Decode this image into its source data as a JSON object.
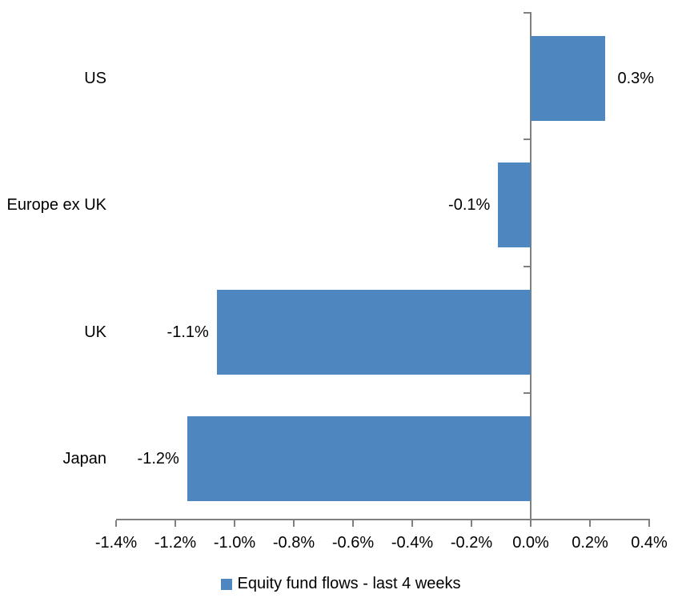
{
  "chart_data": {
    "type": "bar",
    "orientation": "horizontal",
    "categories": [
      "US",
      "Europe ex UK",
      "UK",
      "Japan"
    ],
    "values": [
      0.3,
      -0.1,
      -1.1,
      -1.2
    ],
    "plot_values": [
      0.25,
      -0.11,
      -1.06,
      -1.16
    ],
    "data_labels": [
      "0.3%",
      "-0.1%",
      "-1.1%",
      "-1.2%"
    ],
    "value_unit": "%",
    "xlim": [
      -1.4,
      0.4
    ],
    "x_ticks": [
      -1.4,
      -1.2,
      -1.0,
      -0.8,
      -0.6,
      -0.4,
      -0.2,
      0.0,
      0.2,
      0.4
    ],
    "x_tick_labels": [
      "-1.4%",
      "-1.2%",
      "-1.0%",
      "-0.8%",
      "-0.6%",
      "-0.4%",
      "-0.2%",
      "0.0%",
      "0.2%",
      "0.4%"
    ],
    "legend": [
      "Equity fund flows - last 4 weeks"
    ],
    "legend_position": "bottom",
    "grid": false,
    "bar_color": "#4E86C0",
    "axis_color": "#808080",
    "text_color": "#000000"
  }
}
